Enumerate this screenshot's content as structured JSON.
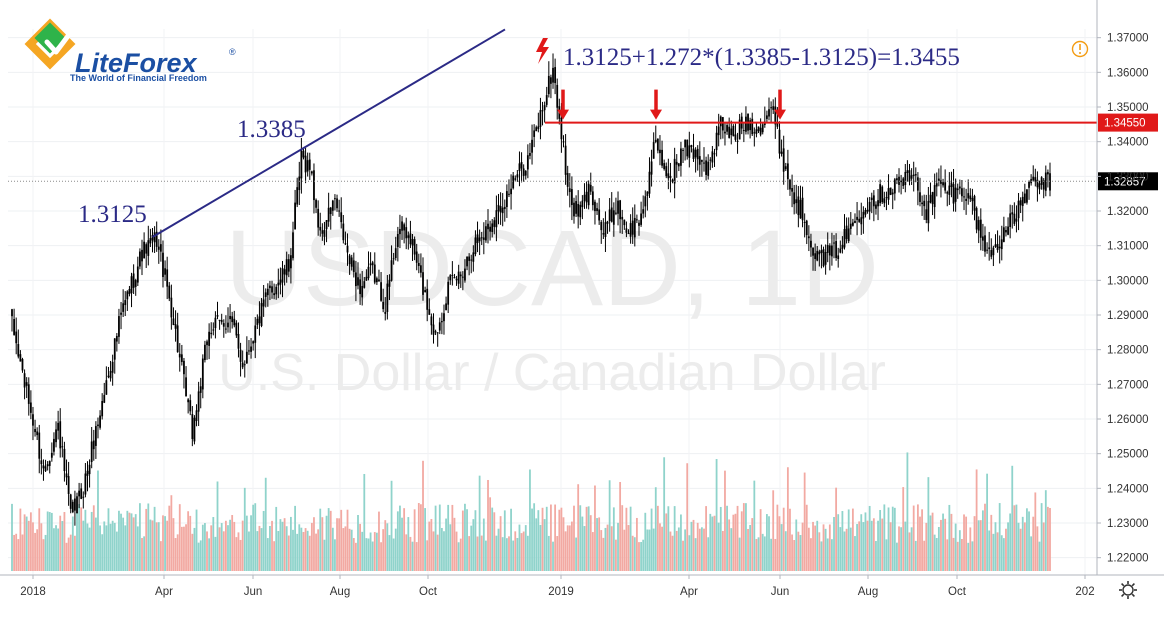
{
  "brand": {
    "name": "LiteForex",
    "registered": "®",
    "tagline": "The World of Financial Freedom",
    "colors": {
      "green": "#2fb34a",
      "orange": "#f5a623",
      "blue": "#1b4fa3"
    }
  },
  "watermark": {
    "symbol": "USDCAD, 1D",
    "description": "U.S. Dollar / Canadian Dollar"
  },
  "annotations": {
    "formula": "1.3125+1.272*(1.3385-1.3125)=1.3455",
    "low_label": "1.3125",
    "high_label": "1.3385"
  },
  "colors": {
    "up_volume": "#8fd3cb",
    "down_volume": "#f2a9a2",
    "candle": "#000000",
    "target_line": "#e01919",
    "trend_line": "#2b2a86",
    "label_text": "#2b2a86",
    "arrow": "#e01919",
    "alert_icon": "#f39c12"
  },
  "chart_data": {
    "type": "candlestick",
    "symbol": "USDCAD",
    "timeframe": "1D",
    "ylim": [
      1.215,
      1.3725
    ],
    "y_ticks": [
      "1.37000",
      "1.36000",
      "1.35000",
      "1.34000",
      "1.33000",
      "1.32000",
      "1.31000",
      "1.30000",
      "1.29000",
      "1.28000",
      "1.27000",
      "1.26000",
      "1.25000",
      "1.24000",
      "1.23000",
      "1.22000"
    ],
    "x_ticks": [
      "2018",
      "Apr",
      "Jun",
      "Aug",
      "Oct",
      "2019",
      "Apr",
      "Jun",
      "Aug",
      "Oct",
      "202"
    ],
    "close_anchors": [
      {
        "i": 0,
        "v": 1.287
      },
      {
        "i": 8,
        "v": 1.265
      },
      {
        "i": 15,
        "v": 1.245
      },
      {
        "i": 22,
        "v": 1.258
      },
      {
        "i": 28,
        "v": 1.232
      },
      {
        "i": 34,
        "v": 1.24
      },
      {
        "i": 42,
        "v": 1.262
      },
      {
        "i": 52,
        "v": 1.29
      },
      {
        "i": 62,
        "v": 1.308
      },
      {
        "i": 69,
        "v": 1.312
      },
      {
        "i": 76,
        "v": 1.292
      },
      {
        "i": 82,
        "v": 1.27
      },
      {
        "i": 86,
        "v": 1.256
      },
      {
        "i": 94,
        "v": 1.286
      },
      {
        "i": 104,
        "v": 1.289
      },
      {
        "i": 110,
        "v": 1.276
      },
      {
        "i": 122,
        "v": 1.296
      },
      {
        "i": 132,
        "v": 1.304
      },
      {
        "i": 138,
        "v": 1.335
      },
      {
        "i": 142,
        "v": 1.333
      },
      {
        "i": 147,
        "v": 1.313
      },
      {
        "i": 154,
        "v": 1.323
      },
      {
        "i": 160,
        "v": 1.307
      },
      {
        "i": 166,
        "v": 1.298
      },
      {
        "i": 172,
        "v": 1.303
      },
      {
        "i": 178,
        "v": 1.293
      },
      {
        "i": 184,
        "v": 1.315
      },
      {
        "i": 190,
        "v": 1.312
      },
      {
        "i": 196,
        "v": 1.298
      },
      {
        "i": 202,
        "v": 1.284
      },
      {
        "i": 208,
        "v": 1.298
      },
      {
        "i": 214,
        "v": 1.302
      },
      {
        "i": 220,
        "v": 1.31
      },
      {
        "i": 228,
        "v": 1.316
      },
      {
        "i": 236,
        "v": 1.325
      },
      {
        "i": 246,
        "v": 1.335
      },
      {
        "i": 254,
        "v": 1.352
      },
      {
        "i": 258,
        "v": 1.361
      },
      {
        "i": 262,
        "v": 1.342
      },
      {
        "i": 266,
        "v": 1.323
      },
      {
        "i": 270,
        "v": 1.319
      },
      {
        "i": 276,
        "v": 1.327
      },
      {
        "i": 282,
        "v": 1.313
      },
      {
        "i": 288,
        "v": 1.322
      },
      {
        "i": 294,
        "v": 1.314
      },
      {
        "i": 300,
        "v": 1.318
      },
      {
        "i": 306,
        "v": 1.338
      },
      {
        "i": 310,
        "v": 1.334
      },
      {
        "i": 314,
        "v": 1.33
      },
      {
        "i": 320,
        "v": 1.338
      },
      {
        "i": 326,
        "v": 1.337
      },
      {
        "i": 332,
        "v": 1.332
      },
      {
        "i": 338,
        "v": 1.345
      },
      {
        "i": 344,
        "v": 1.341
      },
      {
        "i": 350,
        "v": 1.346
      },
      {
        "i": 356,
        "v": 1.344
      },
      {
        "i": 362,
        "v": 1.35
      },
      {
        "i": 366,
        "v": 1.339
      },
      {
        "i": 372,
        "v": 1.325
      },
      {
        "i": 378,
        "v": 1.318
      },
      {
        "i": 384,
        "v": 1.306
      },
      {
        "i": 392,
        "v": 1.308
      },
      {
        "i": 398,
        "v": 1.313
      },
      {
        "i": 406,
        "v": 1.322
      },
      {
        "i": 414,
        "v": 1.325
      },
      {
        "i": 422,
        "v": 1.328
      },
      {
        "i": 430,
        "v": 1.33
      },
      {
        "i": 436,
        "v": 1.32
      },
      {
        "i": 442,
        "v": 1.328
      },
      {
        "i": 448,
        "v": 1.325
      },
      {
        "i": 456,
        "v": 1.326
      },
      {
        "i": 460,
        "v": 1.317
      },
      {
        "i": 466,
        "v": 1.307
      },
      {
        "i": 472,
        "v": 1.313
      },
      {
        "i": 478,
        "v": 1.318
      },
      {
        "i": 484,
        "v": 1.326
      },
      {
        "i": 490,
        "v": 1.328
      },
      {
        "i": 495,
        "v": 1.3286
      }
    ],
    "levels": [
      {
        "name": "target",
        "value": 1.3455,
        "label": "1.34550"
      },
      {
        "name": "last",
        "value": 1.32857,
        "label": "1.32857"
      }
    ],
    "points": [
      {
        "name": "swing-low",
        "value": 1.3125,
        "i": 67
      },
      {
        "name": "swing-high",
        "value": 1.3385,
        "i": 140
      }
    ],
    "arrows_at_index": [
      263,
      322,
      375,
      268
    ]
  }
}
